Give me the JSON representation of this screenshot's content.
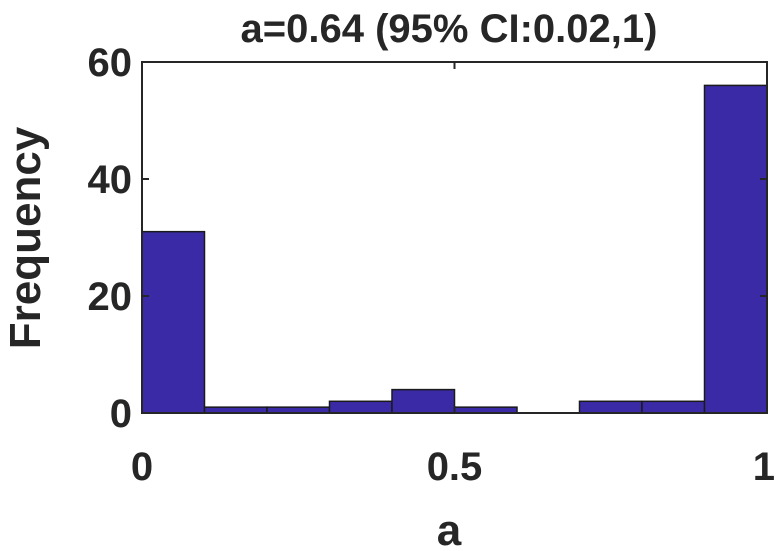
{
  "chart_data": {
    "type": "bar",
    "title": "a=0.64 (95% CI:0.02,1)",
    "xlabel": "a",
    "ylabel": "Frequency",
    "xlim": [
      0,
      1
    ],
    "ylim": [
      0,
      60
    ],
    "x_ticks": [
      {
        "value": 0,
        "label": "0"
      },
      {
        "value": 0.5,
        "label": "0.5"
      },
      {
        "value": 1,
        "label": "1"
      }
    ],
    "y_ticks": [
      {
        "value": 0,
        "label": "0"
      },
      {
        "value": 20,
        "label": "20"
      },
      {
        "value": 40,
        "label": "40"
      },
      {
        "value": 60,
        "label": "60"
      }
    ],
    "bin_edges": [
      0,
      0.1,
      0.2,
      0.3,
      0.4,
      0.5,
      0.6,
      0.7,
      0.8,
      0.9,
      1.0
    ],
    "values": [
      31,
      1,
      1,
      2,
      4,
      1,
      0,
      2,
      2,
      56
    ],
    "bar_color": "#3b2aa6",
    "grid": false
  }
}
